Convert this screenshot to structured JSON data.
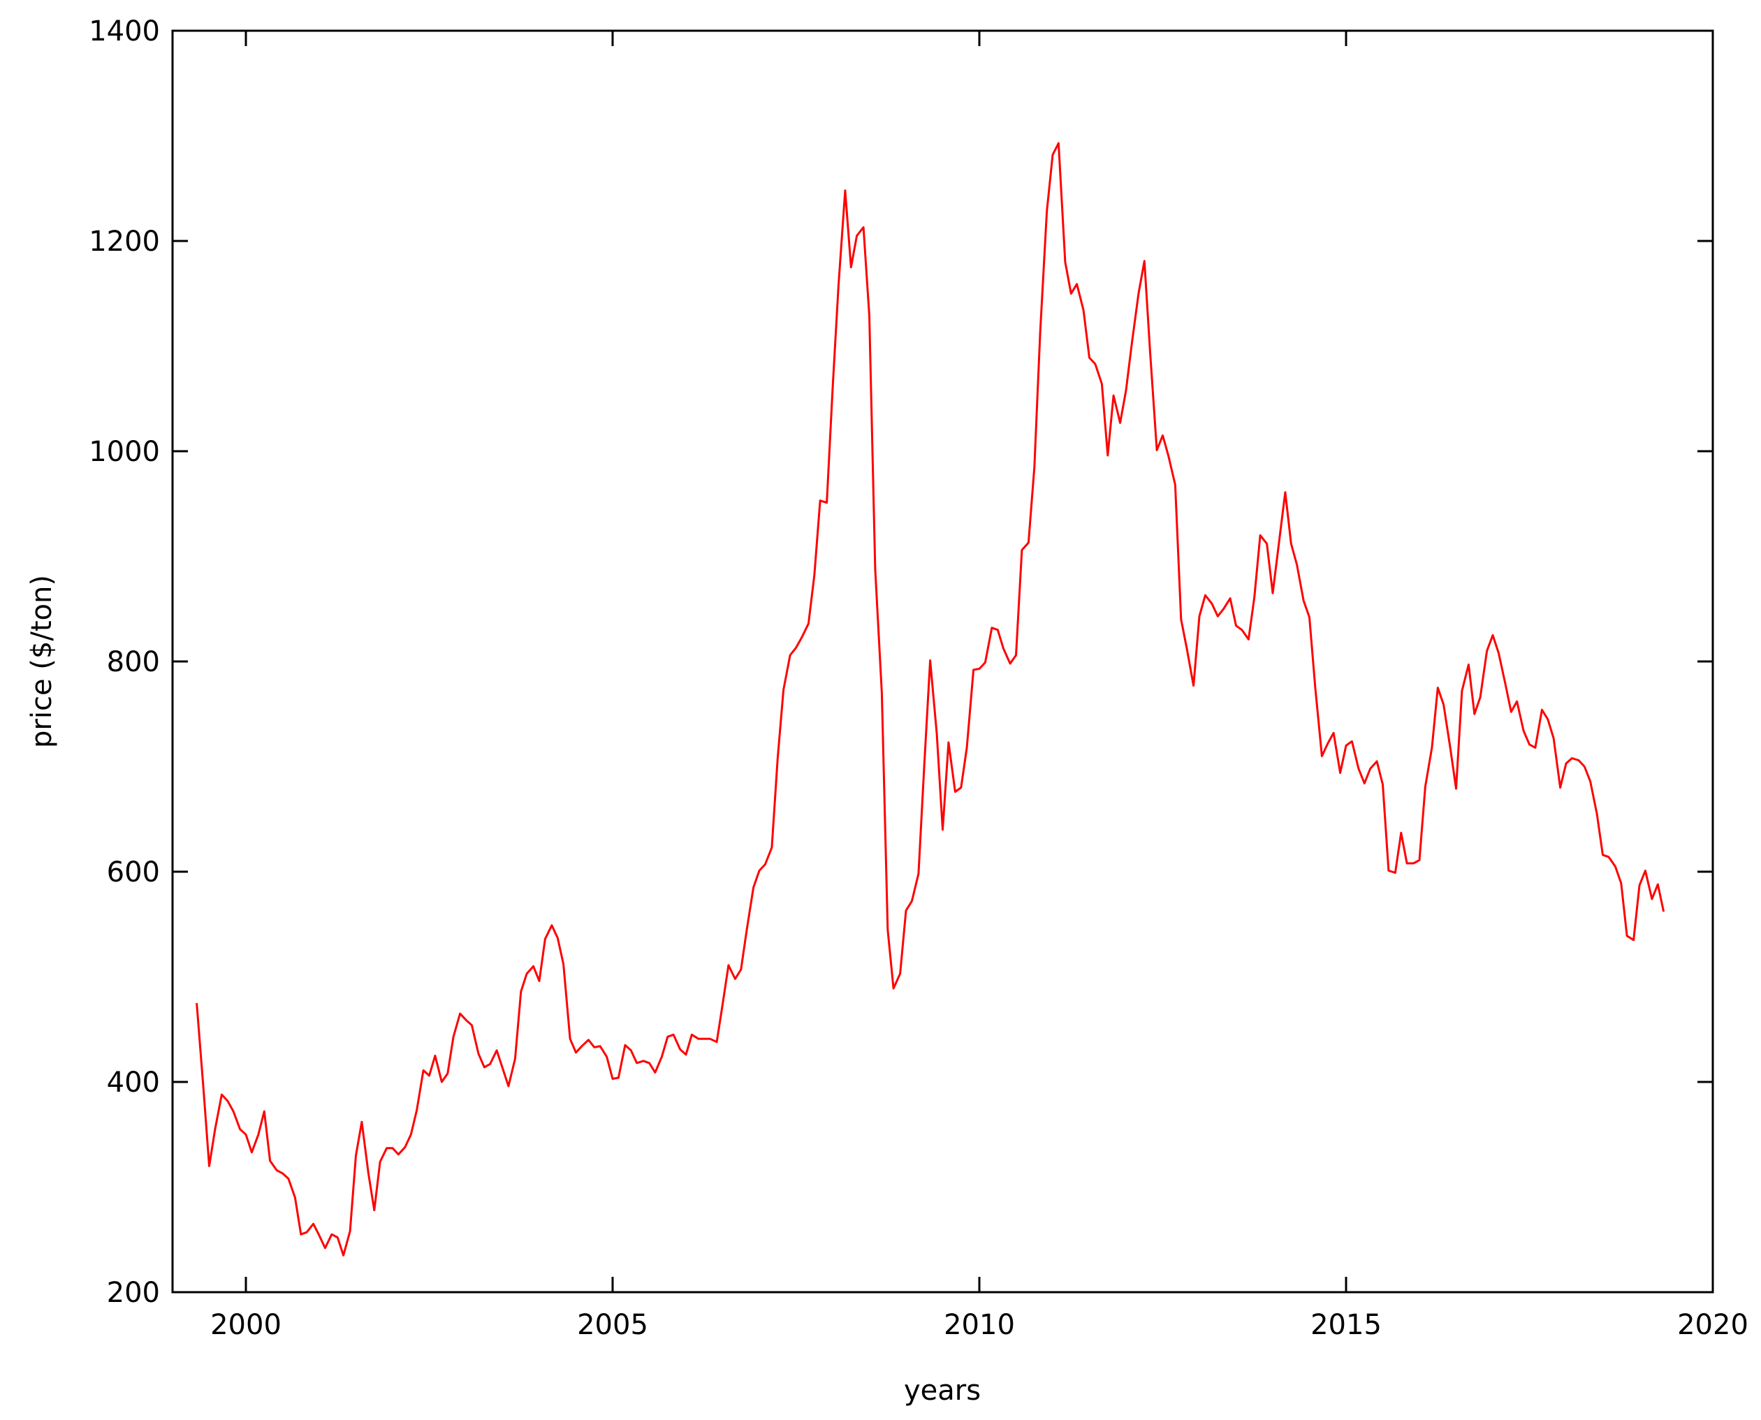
{
  "chart_data": {
    "type": "line",
    "title": "",
    "xlabel": "years",
    "ylabel": "price ($/ton)",
    "xlim": [
      1999.0,
      2020.0
    ],
    "ylim": [
      200,
      1400
    ],
    "xticks": [
      2000,
      2005,
      2010,
      2015,
      2020
    ],
    "yticks": [
      200,
      400,
      600,
      800,
      1000,
      1200,
      1400
    ],
    "grid": false,
    "legend": "none",
    "series": [
      {
        "color": "#ff0000",
        "x": [
          1999.33,
          1999.42,
          1999.5,
          1999.58,
          1999.67,
          1999.75,
          1999.83,
          1999.92,
          2000.0,
          2000.08,
          2000.17,
          2000.25,
          2000.33,
          2000.42,
          2000.5,
          2000.58,
          2000.67,
          2000.75,
          2000.83,
          2000.92,
          2001.0,
          2001.08,
          2001.17,
          2001.25,
          2001.33,
          2001.42,
          2001.5,
          2001.58,
          2001.67,
          2001.75,
          2001.83,
          2001.92,
          2002.0,
          2002.08,
          2002.17,
          2002.25,
          2002.33,
          2002.42,
          2002.5,
          2002.58,
          2002.67,
          2002.75,
          2002.83,
          2002.92,
          2003.0,
          2003.08,
          2003.17,
          2003.25,
          2003.33,
          2003.42,
          2003.5,
          2003.58,
          2003.67,
          2003.75,
          2003.83,
          2003.92,
          2004.0,
          2004.08,
          2004.17,
          2004.25,
          2004.33,
          2004.42,
          2004.5,
          2004.58,
          2004.67,
          2004.75,
          2004.83,
          2004.92,
          2005.0,
          2005.08,
          2005.17,
          2005.25,
          2005.33,
          2005.42,
          2005.5,
          2005.58,
          2005.67,
          2005.75,
          2005.83,
          2005.92,
          2006.0,
          2006.08,
          2006.17,
          2006.25,
          2006.33,
          2006.42,
          2006.5,
          2006.58,
          2006.67,
          2006.75,
          2006.83,
          2006.92,
          2007.0,
          2007.08,
          2007.17,
          2007.25,
          2007.33,
          2007.42,
          2007.5,
          2007.58,
          2007.67,
          2007.75,
          2007.83,
          2007.92,
          2008.0,
          2008.08,
          2008.17,
          2008.25,
          2008.33,
          2008.42,
          2008.5,
          2008.58,
          2008.67,
          2008.75,
          2008.83,
          2008.92,
          2009.0,
          2009.08,
          2009.17,
          2009.25,
          2009.33,
          2009.42,
          2009.5,
          2009.58,
          2009.67,
          2009.75,
          2009.83,
          2009.92,
          2010.0,
          2010.08,
          2010.17,
          2010.25,
          2010.33,
          2010.42,
          2010.5,
          2010.58,
          2010.67,
          2010.75,
          2010.83,
          2010.92,
          2011.0,
          2011.08,
          2011.17,
          2011.25,
          2011.33,
          2011.42,
          2011.5,
          2011.58,
          2011.67,
          2011.75,
          2011.83,
          2011.92,
          2012.0,
          2012.08,
          2012.17,
          2012.25,
          2012.33,
          2012.42,
          2012.5,
          2012.58,
          2012.67,
          2012.75,
          2012.83,
          2012.92,
          2013.0,
          2013.08,
          2013.17,
          2013.25,
          2013.33,
          2013.42,
          2013.5,
          2013.58,
          2013.67,
          2013.75,
          2013.83,
          2013.92,
          2014.0,
          2014.08,
          2014.17,
          2014.25,
          2014.33,
          2014.42,
          2014.5,
          2014.58,
          2014.67,
          2014.75,
          2014.83,
          2014.92,
          2015.0,
          2015.08,
          2015.17,
          2015.25,
          2015.33,
          2015.42,
          2015.5,
          2015.58,
          2015.67,
          2015.75,
          2015.83,
          2015.92,
          2016.0,
          2016.08,
          2016.17,
          2016.25,
          2016.33,
          2016.42,
          2016.5,
          2016.58,
          2016.67,
          2016.75,
          2016.83,
          2016.92,
          2017.0,
          2017.08,
          2017.17,
          2017.25,
          2017.33,
          2017.42,
          2017.5,
          2017.58,
          2017.67,
          2017.75,
          2017.83,
          2017.92,
          2018.0,
          2018.08,
          2018.17,
          2018.25,
          2018.33,
          2018.42,
          2018.5,
          2018.58,
          2018.67,
          2018.75,
          2018.83,
          2018.92,
          2019.0,
          2019.08,
          2019.17,
          2019.25,
          2019.33
        ],
        "values": [
          475,
          395,
          320,
          355,
          388,
          382,
          372,
          355,
          350,
          333,
          350,
          372,
          325,
          316,
          313,
          308,
          290,
          255,
          257,
          265,
          254,
          242,
          255,
          252,
          235,
          258,
          330,
          362,
          313,
          278,
          324,
          337,
          337,
          331,
          338,
          350,
          373,
          411,
          406,
          425,
          400,
          408,
          443,
          465,
          459,
          454,
          427,
          414,
          417,
          430,
          413,
          396,
          422,
          486,
          503,
          510,
          496,
          536,
          549,
          537,
          512,
          441,
          428,
          434,
          440,
          433,
          434,
          424,
          403,
          404,
          435,
          430,
          418,
          420,
          418,
          409,
          424,
          443,
          445,
          431,
          426,
          445,
          441,
          441,
          441,
          438,
          474,
          511,
          498,
          507,
          545,
          585,
          601,
          607,
          623,
          708,
          773,
          806,
          813,
          823,
          836,
          882,
          953,
          951,
          1060,
          1158,
          1248,
          1175,
          1205,
          1213,
          1129,
          888,
          770,
          545,
          489,
          503,
          563,
          572,
          598,
          703,
          801,
          731,
          640,
          723,
          676,
          680,
          718,
          792,
          793,
          799,
          832,
          830,
          812,
          798,
          806,
          906,
          913,
          985,
          1113,
          1228,
          1282,
          1293,
          1180,
          1150,
          1159,
          1134,
          1089,
          1083,
          1064,
          996,
          1053,
          1027,
          1058,
          1103,
          1150,
          1181,
          1093,
          1001,
          1015,
          995,
          968,
          840,
          812,
          777,
          843,
          863,
          855,
          843,
          850,
          860,
          834,
          830,
          821,
          861,
          920,
          912,
          865,
          910,
          961,
          912,
          892,
          858,
          842,
          775,
          710,
          722,
          732,
          694,
          720,
          724,
          698,
          684,
          698,
          705,
          683,
          601,
          599,
          637,
          608,
          608,
          611,
          681,
          718,
          775,
          759,
          718,
          679,
          772,
          797,
          750,
          766,
          810,
          825,
          808,
          779,
          752,
          762,
          734,
          721,
          718,
          754,
          745,
          727,
          680,
          703,
          708,
          706,
          700,
          686,
          655,
          616,
          614,
          605,
          589,
          539,
          535,
          587,
          601,
          574,
          588,
          562
        ]
      }
    ]
  }
}
